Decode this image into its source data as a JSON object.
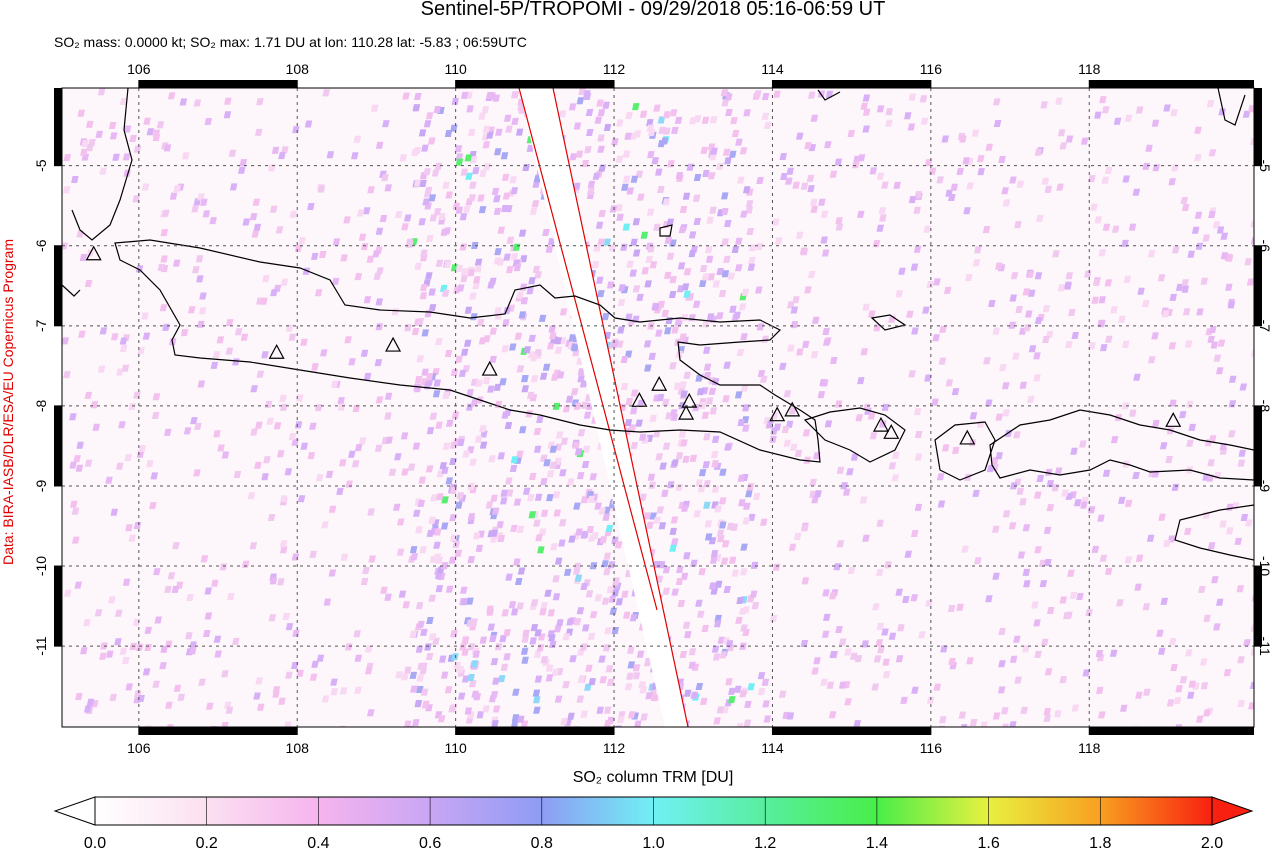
{
  "map": {
    "title": "Sentinel-5P/TROPOMI - 09/29/2018 05:16-06:59 UT",
    "subtitle": "SO₂ mass: 0.0000 kt; SO₂ max: 1.71 DU at lon: 110.28 lat: -5.83 ; 06:59UTC",
    "credit": "Data: BIRA-IASB/DLR/ESA/EU Copernicus Program",
    "xlim": [
      105.03,
      120.08
    ],
    "ylim": [
      -12.01,
      -4.03
    ],
    "xticks": [
      106,
      108,
      110,
      112,
      114,
      116,
      118
    ],
    "yticks": [
      -5,
      -6,
      -7,
      -8,
      -9,
      -10,
      -11
    ],
    "volcanoes": {
      "lon": [
        105.43,
        107.74,
        109.21,
        110.43,
        112.32,
        112.57,
        112.95,
        112.91,
        114.06,
        114.25,
        115.37,
        115.5,
        116.46,
        119.06
      ],
      "lat": [
        -6.1,
        -7.33,
        -7.24,
        -7.54,
        -7.93,
        -7.73,
        -7.94,
        -8.09,
        -8.11,
        -8.05,
        -8.24,
        -8.33,
        -8.4,
        -8.18
      ]
    },
    "colorbar": {
      "label": "SO₂ column TRM [DU]",
      "lim": [
        0,
        2
      ],
      "ticks": [
        {
          "value": 0,
          "label": "0.0"
        },
        {
          "value": 0.2,
          "label": "0.2"
        },
        {
          "value": 0.4,
          "label": "0.4"
        },
        {
          "value": 0.6,
          "label": "0.6"
        },
        {
          "value": 0.8,
          "label": "0.8"
        },
        {
          "value": 1,
          "label": "1.0"
        },
        {
          "value": 1.2,
          "label": "1.2"
        },
        {
          "value": 1.4,
          "label": "1.4"
        },
        {
          "value": 1.6,
          "label": "1.6"
        },
        {
          "value": 1.8,
          "label": "1.8"
        },
        {
          "value": 2,
          "label": "2.0"
        }
      ]
    }
  }
}
